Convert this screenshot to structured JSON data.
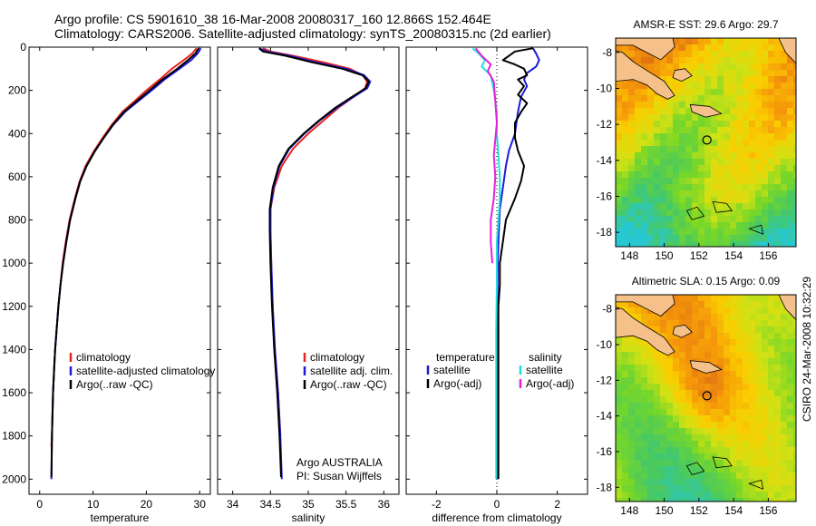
{
  "header": {
    "line1": "Argo profile: CS 5901610_38 16-Mar-2008 20080317_160 12.866S 152.464E",
    "line2": "Climatology: CARS2006. Satellite-adjusted climatology: synTS_20080315.nc (2d earlier)"
  },
  "stamp": "CSIRO 24-Mar-2008 10:32:29",
  "chart_data": [
    {
      "type": "line",
      "xlabel": "temperature",
      "xlim": [
        -2,
        32
      ],
      "xticks": [
        0,
        10,
        20,
        30
      ],
      "ylim": [
        2070,
        0
      ],
      "yticks": [
        0,
        200,
        400,
        600,
        800,
        1000,
        1200,
        1400,
        1600,
        1800,
        2000
      ],
      "legend": {
        "placement": "lower-center",
        "entries": [
          "climatology",
          "satellite-adjusted climatology",
          "Argo(..raw -QC)"
        ]
      },
      "series": [
        {
          "name": "climatology",
          "color": "#e8231f",
          "points": [
            [
              29.4,
              5
            ],
            [
              28.6,
              30
            ],
            [
              27,
              60
            ],
            [
              24.8,
              100
            ],
            [
              22.5,
              150
            ],
            [
              20,
              200
            ],
            [
              17.8,
              250
            ],
            [
              15.5,
              300
            ],
            [
              13.5,
              360
            ],
            [
              11.8,
              420
            ],
            [
              10.2,
              480
            ],
            [
              8.6,
              550
            ],
            [
              7.5,
              620
            ],
            [
              6.6,
              700
            ],
            [
              5.6,
              800
            ],
            [
              4.9,
              900
            ],
            [
              4.3,
              1000
            ],
            [
              3.9,
              1100
            ],
            [
              3.5,
              1200
            ],
            [
              3.2,
              1300
            ],
            [
              2.9,
              1400
            ],
            [
              2.7,
              1500
            ],
            [
              2.5,
              1600
            ],
            [
              2.4,
              1700
            ],
            [
              2.3,
              1800
            ],
            [
              2.2,
              1850
            ]
          ]
        },
        {
          "name": "satellite-adjusted climatology",
          "color": "#1b1bd8",
          "points": [
            [
              30.2,
              5
            ],
            [
              29.6,
              30
            ],
            [
              28.4,
              60
            ],
            [
              26.2,
              100
            ],
            [
              23.4,
              150
            ],
            [
              21,
              200
            ],
            [
              18.5,
              250
            ],
            [
              16,
              300
            ],
            [
              13.8,
              360
            ],
            [
              12,
              420
            ],
            [
              10.4,
              480
            ],
            [
              8.8,
              550
            ],
            [
              7.6,
              620
            ],
            [
              6.7,
              700
            ],
            [
              5.7,
              800
            ],
            [
              5,
              900
            ],
            [
              4.4,
              1000
            ],
            [
              3.9,
              1100
            ],
            [
              3.5,
              1200
            ],
            [
              3.2,
              1300
            ],
            [
              2.9,
              1400
            ],
            [
              2.7,
              1500
            ],
            [
              2.5,
              1600
            ],
            [
              2.4,
              1700
            ],
            [
              2.3,
              1800
            ],
            [
              2.25,
              1900
            ],
            [
              2.2,
              2000
            ]
          ]
        },
        {
          "name": "Argo(..raw -QC)",
          "color": "#000000",
          "points": [
            [
              29.8,
              5
            ],
            [
              29.2,
              30
            ],
            [
              27.8,
              60
            ],
            [
              25.8,
              100
            ],
            [
              23,
              150
            ],
            [
              20.6,
              200
            ],
            [
              18.2,
              250
            ],
            [
              15.8,
              300
            ],
            [
              13.7,
              360
            ],
            [
              12,
              420
            ],
            [
              10.4,
              480
            ],
            [
              8.8,
              550
            ],
            [
              7.6,
              620
            ],
            [
              6.7,
              700
            ],
            [
              5.7,
              800
            ],
            [
              5,
              900
            ],
            [
              4.4,
              1000
            ],
            [
              3.9,
              1100
            ],
            [
              3.5,
              1200
            ],
            [
              3.2,
              1300
            ],
            [
              2.9,
              1400
            ],
            [
              2.7,
              1500
            ],
            [
              2.5,
              1600
            ],
            [
              2.4,
              1700
            ],
            [
              2.3,
              1800
            ],
            [
              2.25,
              1900
            ],
            [
              2.2,
              1990
            ]
          ]
        }
      ]
    },
    {
      "type": "line",
      "xlabel": "salinity",
      "xlim": [
        33.8,
        36.2
      ],
      "xticks": [
        34,
        34.5,
        35,
        35.5,
        36
      ],
      "ylim": [
        2070,
        0
      ],
      "legend": {
        "placement": "lower-center",
        "entries": [
          "climatology",
          "satellite adj. clim.",
          "Argo(..raw -QC)"
        ]
      },
      "annotation": [
        "Argo AUSTRALIA",
        "PI: Susan Wijffels"
      ],
      "series": [
        {
          "name": "climatology",
          "color": "#e8231f",
          "points": [
            [
              34.4,
              5
            ],
            [
              34.5,
              20
            ],
            [
              34.8,
              40
            ],
            [
              35.2,
              70
            ],
            [
              35.55,
              100
            ],
            [
              35.72,
              130
            ],
            [
              35.78,
              160
            ],
            [
              35.75,
              190
            ],
            [
              35.6,
              230
            ],
            [
              35.4,
              280
            ],
            [
              35.2,
              340
            ],
            [
              35,
              400
            ],
            [
              34.8,
              470
            ],
            [
              34.65,
              550
            ],
            [
              34.55,
              650
            ],
            [
              34.5,
              750
            ],
            [
              34.5,
              850
            ],
            [
              34.51,
              1000
            ],
            [
              34.53,
              1200
            ],
            [
              34.55,
              1400
            ],
            [
              34.6,
              1600
            ],
            [
              34.63,
              1800
            ]
          ]
        },
        {
          "name": "satellite adj. clim.",
          "color": "#1b1bd8",
          "points": [
            [
              34.35,
              5
            ],
            [
              34.45,
              20
            ],
            [
              34.75,
              40
            ],
            [
              35.1,
              70
            ],
            [
              35.5,
              100
            ],
            [
              35.74,
              130
            ],
            [
              35.82,
              160
            ],
            [
              35.78,
              190
            ],
            [
              35.6,
              230
            ],
            [
              35.38,
              280
            ],
            [
              35.15,
              340
            ],
            [
              34.95,
              400
            ],
            [
              34.75,
              470
            ],
            [
              34.62,
              550
            ],
            [
              34.54,
              650
            ],
            [
              34.5,
              750
            ],
            [
              34.5,
              850
            ],
            [
              34.51,
              1000
            ],
            [
              34.53,
              1200
            ],
            [
              34.56,
              1400
            ],
            [
              34.6,
              1600
            ],
            [
              34.63,
              1800
            ],
            [
              34.65,
              2000
            ]
          ]
        },
        {
          "name": "Argo(..raw -QC)",
          "color": "#000000",
          "points": [
            [
              34.35,
              5
            ],
            [
              34.4,
              20
            ],
            [
              34.7,
              40
            ],
            [
              35.05,
              70
            ],
            [
              35.45,
              100
            ],
            [
              35.72,
              130
            ],
            [
              35.8,
              160
            ],
            [
              35.76,
              190
            ],
            [
              35.58,
              230
            ],
            [
              35.36,
              280
            ],
            [
              35.14,
              340
            ],
            [
              34.94,
              400
            ],
            [
              34.74,
              470
            ],
            [
              34.61,
              550
            ],
            [
              34.53,
              650
            ],
            [
              34.49,
              750
            ],
            [
              34.49,
              850
            ],
            [
              34.5,
              1000
            ],
            [
              34.52,
              1200
            ],
            [
              34.55,
              1400
            ],
            [
              34.59,
              1600
            ],
            [
              34.62,
              1800
            ],
            [
              34.64,
              1990
            ]
          ]
        }
      ]
    },
    {
      "type": "line",
      "xlabel": "difference from climatology",
      "xlim": [
        -3,
        3
      ],
      "xticks": [
        -2,
        0,
        2
      ],
      "ylim": [
        2070,
        0
      ],
      "legend": {
        "placement": "lower-center",
        "entries": [
          "temperature",
          "satellite",
          "Argo(-adj)",
          "salinity",
          "satellite",
          "Argo(-adj)"
        ]
      },
      "series": [
        {
          "name": "satellite",
          "color": "#1b1bd8",
          "points": [
            [
              1.2,
              5
            ],
            [
              1.3,
              30
            ],
            [
              1.4,
              60
            ],
            [
              1.3,
              90
            ],
            [
              1,
              120
            ],
            [
              0.9,
              150
            ],
            [
              1,
              180
            ],
            [
              0.8,
              230
            ],
            [
              0.7,
              300
            ],
            [
              0.6,
              400
            ],
            [
              0.4,
              480
            ],
            [
              0.3,
              550
            ],
            [
              0.2,
              650
            ],
            [
              0.1,
              750
            ],
            [
              0.05,
              900
            ],
            [
              0.03,
              1000
            ],
            [
              0.02,
              1200
            ],
            [
              0.01,
              1500
            ],
            [
              0,
              2000
            ]
          ]
        },
        {
          "name": "Argo(-adj)",
          "color": "#000000",
          "points": [
            [
              1.2,
              5
            ],
            [
              0.6,
              20
            ],
            [
              0.2,
              60
            ],
            [
              0.6,
              80
            ],
            [
              0.9,
              100
            ],
            [
              1,
              130
            ],
            [
              0.7,
              150
            ],
            [
              0.9,
              180
            ],
            [
              0.7,
              220
            ],
            [
              1,
              260
            ],
            [
              0.8,
              300
            ],
            [
              0.6,
              350
            ],
            [
              0.6,
              420
            ],
            [
              0.7,
              480
            ],
            [
              0.9,
              550
            ],
            [
              0.8,
              620
            ],
            [
              0.6,
              700
            ],
            [
              0.3,
              800
            ],
            [
              0.2,
              900
            ],
            [
              0.1,
              1000
            ],
            [
              0.1,
              1100
            ],
            [
              0.05,
              1200
            ],
            [
              0.05,
              1400
            ],
            [
              0.05,
              1600
            ],
            [
              0.05,
              1800
            ],
            [
              0.05,
              2000
            ]
          ]
        },
        {
          "name": "satellite",
          "color": "#22dddd",
          "points": [
            [
              -0.8,
              5
            ],
            [
              -0.6,
              30
            ],
            [
              -0.4,
              60
            ],
            [
              -0.5,
              90
            ],
            [
              -0.2,
              130
            ],
            [
              -0.1,
              200
            ],
            [
              0,
              300
            ],
            [
              0,
              400
            ],
            [
              0.05,
              500
            ],
            [
              0.1,
              600
            ],
            [
              0.1,
              700
            ],
            [
              0.05,
              800
            ],
            [
              0,
              900
            ],
            [
              0,
              1100
            ],
            [
              -0.02,
              1300
            ],
            [
              -0.02,
              1500
            ],
            [
              -0.02,
              1700
            ],
            [
              -0.02,
              1900
            ],
            [
              -0.02,
              2000
            ]
          ]
        },
        {
          "name": "Argo(-adj)",
          "color": "#e523d6",
          "points": [
            [
              -0.7,
              5
            ],
            [
              -0.5,
              40
            ],
            [
              -0.2,
              80
            ],
            [
              -0.3,
              110
            ],
            [
              -0.1,
              160
            ],
            [
              -0.05,
              250
            ],
            [
              0,
              350
            ],
            [
              -0.1,
              500
            ],
            [
              -0.05,
              600
            ],
            [
              -0.1,
              700
            ],
            [
              -0.2,
              800
            ],
            [
              -0.2,
              900
            ],
            [
              -0.15,
              1000
            ]
          ]
        }
      ]
    },
    {
      "type": "heatmap",
      "title": "AMSR-E SST: 29.6 Argo: 29.7",
      "xticks": [
        148,
        150,
        152,
        154,
        156
      ],
      "yticks": [
        -8,
        -10,
        -12,
        -14,
        -16,
        -18
      ],
      "xlim": [
        147.2,
        157.6
      ],
      "ylim": [
        -18.8,
        -7.2
      ],
      "marker": [
        152.464,
        -12.866
      ]
    },
    {
      "type": "heatmap",
      "title": "Altimetric SLA: 0.15 Argo: 0.09",
      "xticks": [
        148,
        150,
        152,
        154,
        156
      ],
      "yticks": [
        -8,
        -10,
        -12,
        -14,
        -16,
        -18
      ],
      "xlim": [
        147.2,
        157.6
      ],
      "ylim": [
        -18.8,
        -7.2
      ],
      "marker": [
        152.464,
        -12.866
      ]
    }
  ]
}
